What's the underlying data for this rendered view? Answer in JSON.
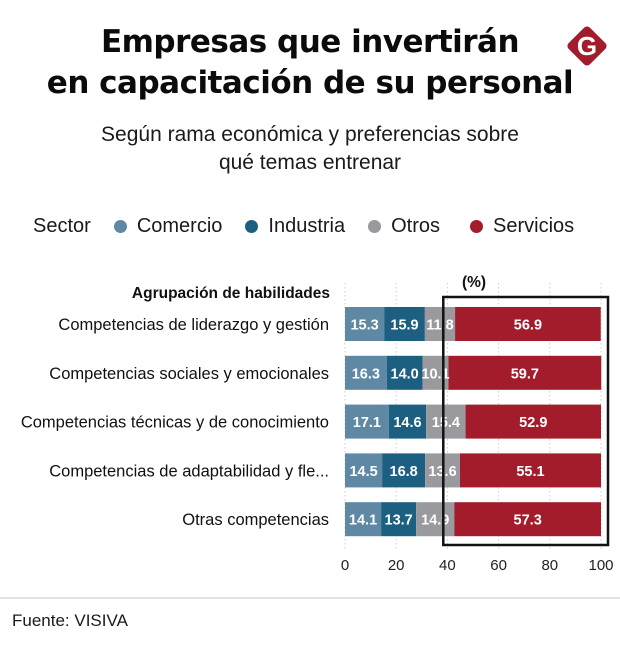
{
  "header": {
    "title_line1": "Empresas que invertirán",
    "title_line2": "en capacitación de su personal",
    "subtitle_line1": "Según rama económica y preferencias sobre",
    "subtitle_line2": "qué temas entrenar",
    "logo_letter": "G",
    "logo_color": "#a31c2b"
  },
  "legend": {
    "title": "Sector",
    "items": [
      {
        "label": "Comercio",
        "color": "#5f88a4"
      },
      {
        "label": "Industria",
        "color": "#1d5f80"
      },
      {
        "label": "Otros",
        "color": "#9a9a9e"
      },
      {
        "label": "Servicios",
        "color": "#a31c2b"
      }
    ]
  },
  "chart_data": {
    "type": "bar",
    "orientation": "horizontal",
    "stacked": true,
    "title": "Empresas que invertirán en capacitación de su personal",
    "subtitle": "Según rama económica y preferencias sobre qué temas entrenar",
    "category_axis_title": "Agrupación de habilidades",
    "unit_label": "(%)",
    "categories": [
      "Competencias de liderazgo y gestión",
      "Competencias sociales y emocionales",
      "Competencias técnicas y de conocimiento",
      "Competencias de adaptabilidad y fle...",
      "Otras competencias"
    ],
    "series": [
      {
        "name": "Comercio",
        "color": "#5f88a4",
        "values": [
          15.3,
          16.3,
          17.1,
          14.5,
          14.1
        ]
      },
      {
        "name": "Industria",
        "color": "#1d5f80",
        "values": [
          15.9,
          14.0,
          14.6,
          16.8,
          13.7
        ]
      },
      {
        "name": "Otros",
        "color": "#9a9a9e",
        "values": [
          11.8,
          10.1,
          15.4,
          13.6,
          14.9
        ]
      },
      {
        "name": "Servicios",
        "color": "#a31c2b",
        "values": [
          56.9,
          59.7,
          52.9,
          55.1,
          57.3
        ]
      }
    ],
    "xlim": [
      0,
      100
    ],
    "xticks": [
      0,
      20,
      40,
      60,
      80,
      100
    ],
    "xtick_labels": [
      "0",
      "20",
      "40",
      "60",
      "80",
      "100"
    ],
    "grid": "vertical dotted",
    "legend_position": "top",
    "highlight_box_range": [
      38,
      100
    ],
    "highlight_series": "Servicios"
  },
  "footer": {
    "source": "Fuente: VISIVA"
  }
}
